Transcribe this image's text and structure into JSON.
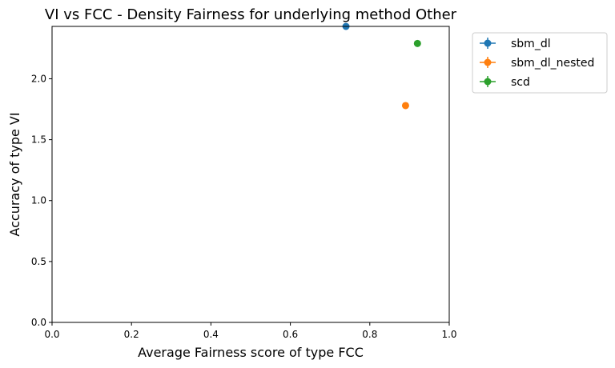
{
  "chart_data": {
    "type": "scatter",
    "title": "VI vs FCC - Density Fairness for underlying method Other",
    "xlabel": "Average Fairness score of type FCC",
    "ylabel": "Accuracy of type VI",
    "xlim": [
      0.0,
      1.0
    ],
    "ylim": [
      0.0,
      2.43
    ],
    "xticks": [
      "0.0",
      "0.2",
      "0.4",
      "0.6",
      "0.8",
      "1.0"
    ],
    "yticks": [
      "0.0",
      "0.5",
      "1.0",
      "1.5",
      "2.0"
    ],
    "grid": false,
    "legend_position": "outside-top-right",
    "series": [
      {
        "name": "sbm_dl",
        "color": "#1f77b4",
        "x": [
          0.74
        ],
        "y": [
          2.43
        ]
      },
      {
        "name": "sbm_dl_nested",
        "color": "#ff7f0e",
        "x": [
          0.89
        ],
        "y": [
          1.78
        ]
      },
      {
        "name": "scd",
        "color": "#2ca02c",
        "x": [
          0.92
        ],
        "y": [
          2.29
        ]
      }
    ]
  }
}
